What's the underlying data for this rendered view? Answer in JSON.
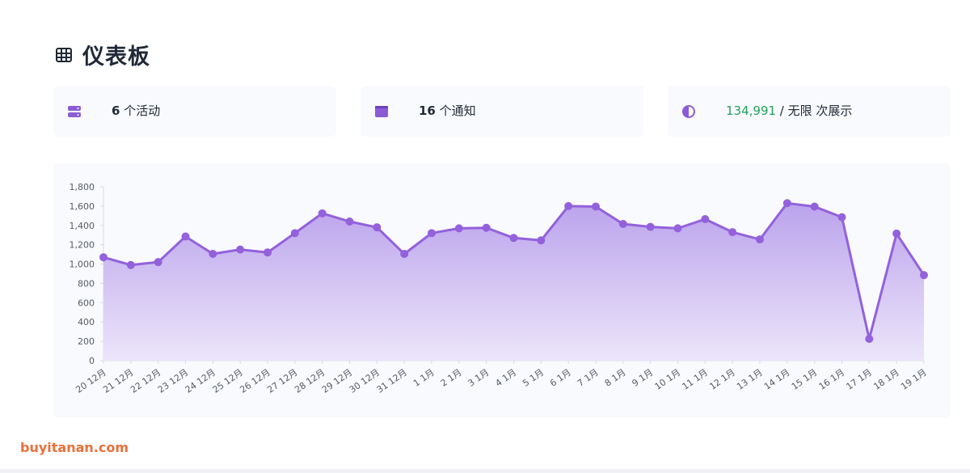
{
  "header": {
    "title": "仪表板",
    "icon": "table-grid-icon"
  },
  "stats": [
    {
      "icon": "server-icon",
      "value": "6",
      "label": "个活动"
    },
    {
      "icon": "window-icon",
      "value": "16",
      "label": "个通知"
    },
    {
      "icon": "half-circle-icon",
      "value": "134,991",
      "separator": " / ",
      "suffix": "无限 次展示"
    }
  ],
  "colors": {
    "accent": "#9361dc",
    "area_top": "#bba3ec",
    "area_bottom": "#ece5fa",
    "green": "#22a05a",
    "watermark": "#e8703a"
  },
  "chart_data": {
    "type": "area",
    "categories": [
      "20 12月",
      "21 12月",
      "22 12月",
      "23 12月",
      "24 12月",
      "25 12月",
      "26 12月",
      "27 12月",
      "28 12月",
      "29 12月",
      "30 12月",
      "31 12月",
      "1 1月",
      "2 1月",
      "3 1月",
      "4 1月",
      "5 1月",
      "6 1月",
      "7 1月",
      "8 1月",
      "9 1月",
      "10 1月",
      "11 1月",
      "12 1月",
      "13 1月",
      "14 1月",
      "15 1月",
      "16 1月",
      "17 1月",
      "18 1月",
      "19 1月"
    ],
    "values": [
      1070,
      990,
      1020,
      1285,
      1105,
      1150,
      1120,
      1320,
      1525,
      1440,
      1380,
      1105,
      1320,
      1370,
      1375,
      1270,
      1245,
      1600,
      1595,
      1415,
      1385,
      1370,
      1465,
      1330,
      1255,
      1630,
      1595,
      1485,
      225,
      1315,
      885
    ],
    "y_ticks": [
      "0",
      "200",
      "400",
      "600",
      "800",
      "1,000",
      "1,200",
      "1,400",
      "1,600",
      "1,800"
    ],
    "ylim": [
      0,
      1800
    ],
    "grid": false,
    "legend": "none"
  },
  "watermark": "buyitanan.com"
}
